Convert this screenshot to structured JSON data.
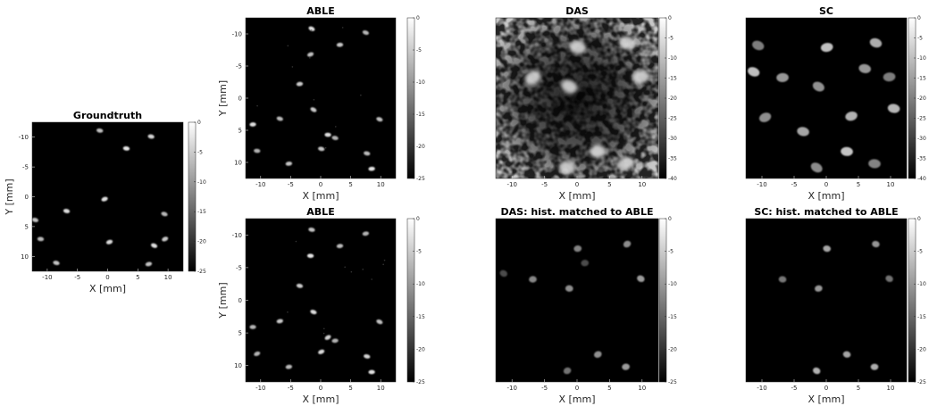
{
  "chart_data": [
    {
      "type": "heatmap",
      "title": "Groundtruth",
      "xlabel": "X [mm]",
      "ylabel": "Y [mm]",
      "x_ticks": [
        -10,
        -5,
        0,
        5,
        10
      ],
      "y_ticks": [
        -10,
        -5,
        0,
        5,
        10
      ],
      "xlim": [
        -12.5,
        12.5
      ],
      "ylim": [
        -12.5,
        12.5
      ],
      "y_direction": "reverse",
      "colormap": "gray",
      "colorbar": {
        "ticks": [
          0,
          -5,
          -10,
          -15,
          -20,
          -25
        ],
        "range": [
          -25,
          0
        ]
      },
      "scatterers": [
        {
          "x": -1.3,
          "y": -11.1
        },
        {
          "x": 3.1,
          "y": -8.1
        },
        {
          "x": 7.2,
          "y": -10.1
        },
        {
          "x": -0.5,
          "y": 0.4
        },
        {
          "x": -6.8,
          "y": 2.4
        },
        {
          "x": -12.0,
          "y": 3.9
        },
        {
          "x": 9.4,
          "y": 2.9
        },
        {
          "x": -11.1,
          "y": 7.1
        },
        {
          "x": 0.3,
          "y": 7.6
        },
        {
          "x": 7.7,
          "y": 8.2
        },
        {
          "x": 9.5,
          "y": 7.1
        },
        {
          "x": -8.5,
          "y": 11.1
        },
        {
          "x": 6.8,
          "y": 11.3
        }
      ]
    },
    {
      "type": "heatmap",
      "title": "ABLE",
      "xlabel": "X [mm]",
      "ylabel": "Y [mm]",
      "x_ticks": [
        -10,
        -5,
        0,
        5,
        10
      ],
      "y_ticks": [
        -10,
        -5,
        0,
        5,
        10
      ],
      "xlim": [
        -12.5,
        12.5
      ],
      "ylim": [
        -12.5,
        12.5
      ],
      "y_direction": "reverse",
      "colormap": "gray",
      "colorbar": {
        "ticks": [
          0,
          -5,
          -10,
          -15,
          -20,
          -25
        ],
        "range": [
          -25,
          0
        ]
      },
      "scatterers": [
        {
          "x": -1.5,
          "y": -10.8
        },
        {
          "x": 3.2,
          "y": -8.3
        },
        {
          "x": 7.5,
          "y": -10.2
        },
        {
          "x": -1.7,
          "y": -6.8
        },
        {
          "x": -3.5,
          "y": -2.2
        },
        {
          "x": -1.2,
          "y": 1.8
        },
        {
          "x": -6.8,
          "y": 3.2
        },
        {
          "x": -11.3,
          "y": 4.1
        },
        {
          "x": 9.8,
          "y": 3.3
        },
        {
          "x": 1.2,
          "y": 5.7
        },
        {
          "x": 2.4,
          "y": 6.2
        },
        {
          "x": -10.6,
          "y": 8.2
        },
        {
          "x": 0.1,
          "y": 7.9
        },
        {
          "x": 7.7,
          "y": 8.6
        },
        {
          "x": -5.3,
          "y": 10.2
        },
        {
          "x": 8.5,
          "y": 11.0
        }
      ]
    },
    {
      "type": "heatmap",
      "title": "DAS",
      "x_ticks": [
        -10,
        -5,
        0,
        5,
        10
      ],
      "xlim": [
        -12.5,
        12.5
      ],
      "ylim": [
        -12.5,
        12.5
      ],
      "colormap": "gray",
      "colorbar": {
        "ticks": [
          0,
          -5,
          -10,
          -15,
          -20,
          -25,
          -30,
          -35,
          -40
        ],
        "range": [
          -40,
          0
        ]
      },
      "scatterers": [
        {
          "x": -1.5,
          "y": -10.8
        },
        {
          "x": 3.2,
          "y": -8.3
        },
        {
          "x": 7.5,
          "y": -10.2
        },
        {
          "x": -1.2,
          "y": 1.8
        },
        {
          "x": -6.8,
          "y": 3.2
        },
        {
          "x": 0.1,
          "y": 7.9
        },
        {
          "x": 7.7,
          "y": 8.6
        },
        {
          "x": 9.8,
          "y": 3.3
        }
      ]
    },
    {
      "type": "heatmap",
      "title": "SC",
      "x_ticks": [
        -10,
        -5,
        0,
        5,
        10
      ],
      "xlim": [
        -12.5,
        12.5
      ],
      "ylim": [
        -12.5,
        12.5
      ],
      "colormap": "gray",
      "colorbar": {
        "ticks": [
          0,
          -5,
          -10,
          -15,
          -20,
          -25,
          -30,
          -35,
          -40
        ],
        "range": [
          -40,
          0
        ]
      },
      "scatterers": [
        {
          "x": -1.5,
          "y": -10.8
        },
        {
          "x": 3.2,
          "y": -8.3
        },
        {
          "x": 7.5,
          "y": -10.2
        },
        {
          "x": -1.2,
          "y": 1.8
        },
        {
          "x": -6.8,
          "y": 3.2
        },
        {
          "x": -11.3,
          "y": 4.1
        },
        {
          "x": 9.8,
          "y": 3.3
        },
        {
          "x": 0.1,
          "y": 7.9
        },
        {
          "x": 7.7,
          "y": 8.6
        },
        {
          "x": -10.6,
          "y": 8.2
        },
        {
          "x": 3.9,
          "y": -2.8
        },
        {
          "x": -3.6,
          "y": -5.2
        },
        {
          "x": 10.5,
          "y": -1.6
        },
        {
          "x": -9.5,
          "y": -3.0
        },
        {
          "x": 6.0,
          "y": 4.6
        }
      ]
    },
    {
      "type": "heatmap",
      "title": "ABLE",
      "xlabel": "X [mm]",
      "ylabel": "Y [mm]",
      "x_ticks": [
        -10,
        -5,
        0,
        5,
        10
      ],
      "y_ticks": [
        -10,
        -5,
        0,
        5,
        10
      ],
      "xlim": [
        -12.5,
        12.5
      ],
      "ylim": [
        -12.5,
        12.5
      ],
      "y_direction": "reverse",
      "colormap": "gray",
      "colorbar": {
        "ticks": [
          0,
          -5,
          -10,
          -15,
          -20,
          -25
        ],
        "range": [
          -25,
          0
        ]
      },
      "scatterers": [
        {
          "x": -1.5,
          "y": -10.8
        },
        {
          "x": 3.2,
          "y": -8.3
        },
        {
          "x": 7.5,
          "y": -10.2
        },
        {
          "x": -1.7,
          "y": -6.8
        },
        {
          "x": -3.5,
          "y": -2.2
        },
        {
          "x": -1.2,
          "y": 1.8
        },
        {
          "x": -6.8,
          "y": 3.2
        },
        {
          "x": -11.3,
          "y": 4.1
        },
        {
          "x": 9.8,
          "y": 3.3
        },
        {
          "x": 1.2,
          "y": 5.7
        },
        {
          "x": 2.4,
          "y": 6.2
        },
        {
          "x": -10.6,
          "y": 8.2
        },
        {
          "x": 0.1,
          "y": 7.9
        },
        {
          "x": 7.7,
          "y": 8.6
        },
        {
          "x": -5.3,
          "y": 10.2
        },
        {
          "x": 8.5,
          "y": 11.0
        }
      ]
    },
    {
      "type": "heatmap",
      "title": "DAS: hist. matched to ABLE",
      "x_ticks": [
        -10,
        -5,
        0,
        5,
        10
      ],
      "xlim": [
        -12.5,
        12.5
      ],
      "ylim": [
        -12.5,
        12.5
      ],
      "colormap": "gray",
      "colorbar": {
        "ticks": [
          0,
          -5,
          -10,
          -15,
          -20,
          -25
        ],
        "range": [
          -25,
          0
        ]
      },
      "scatterers": [
        {
          "x": -1.5,
          "y": -10.8
        },
        {
          "x": 3.2,
          "y": -8.3
        },
        {
          "x": 7.5,
          "y": -10.2
        },
        {
          "x": -1.2,
          "y": 1.8
        },
        {
          "x": -6.8,
          "y": 3.2
        },
        {
          "x": 9.8,
          "y": 3.3
        },
        {
          "x": 0.1,
          "y": 7.9
        },
        {
          "x": 7.7,
          "y": 8.6
        },
        {
          "x": -11.3,
          "y": 4.1
        },
        {
          "x": 1.2,
          "y": 5.7
        }
      ]
    },
    {
      "type": "heatmap",
      "title": "SC: hist. matched to ABLE",
      "x_ticks": [
        -10,
        -5,
        0,
        5,
        10
      ],
      "xlim": [
        -12.5,
        12.5
      ],
      "ylim": [
        -12.5,
        12.5
      ],
      "colormap": "gray",
      "colorbar": {
        "ticks": [
          0,
          -5,
          -10,
          -15,
          -20,
          -25
        ],
        "range": [
          -25,
          0
        ]
      },
      "scatterers": [
        {
          "x": -1.5,
          "y": -10.8
        },
        {
          "x": 3.2,
          "y": -8.3
        },
        {
          "x": 7.5,
          "y": -10.2
        },
        {
          "x": -1.2,
          "y": 1.8
        },
        {
          "x": -6.8,
          "y": 3.2
        },
        {
          "x": 9.8,
          "y": 3.3
        },
        {
          "x": 0.1,
          "y": 7.9
        },
        {
          "x": 7.7,
          "y": 8.6
        }
      ]
    }
  ]
}
